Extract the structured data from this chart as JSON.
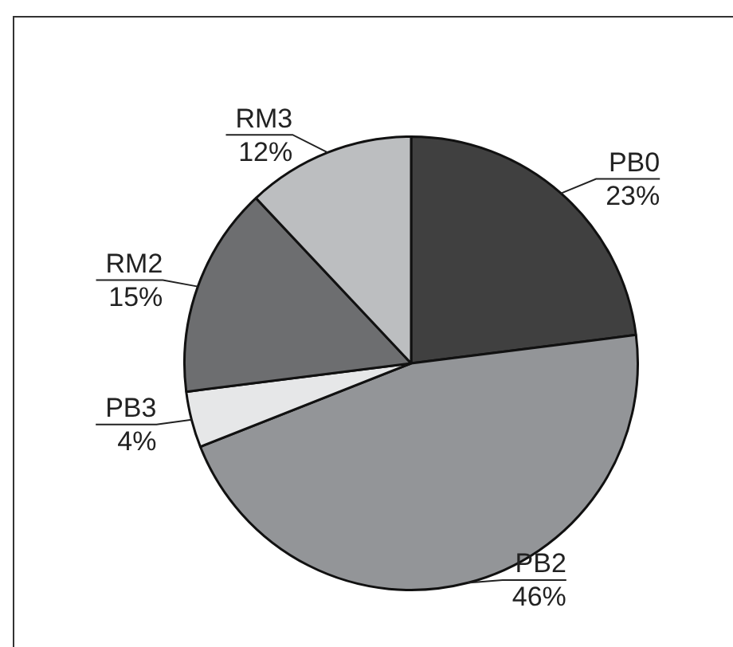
{
  "chart_data": {
    "type": "pie",
    "categories": [
      "PB0",
      "PB2",
      "PB3",
      "RM2",
      "RM3"
    ],
    "values": [
      23,
      46,
      4,
      15,
      12
    ],
    "value_labels": [
      "23%",
      "46%",
      "4%",
      "15%",
      "12%"
    ],
    "colors": [
      "#404040",
      "#939598",
      "#e6e7e8",
      "#6d6e70",
      "#bcbec0"
    ],
    "legend": false
  }
}
